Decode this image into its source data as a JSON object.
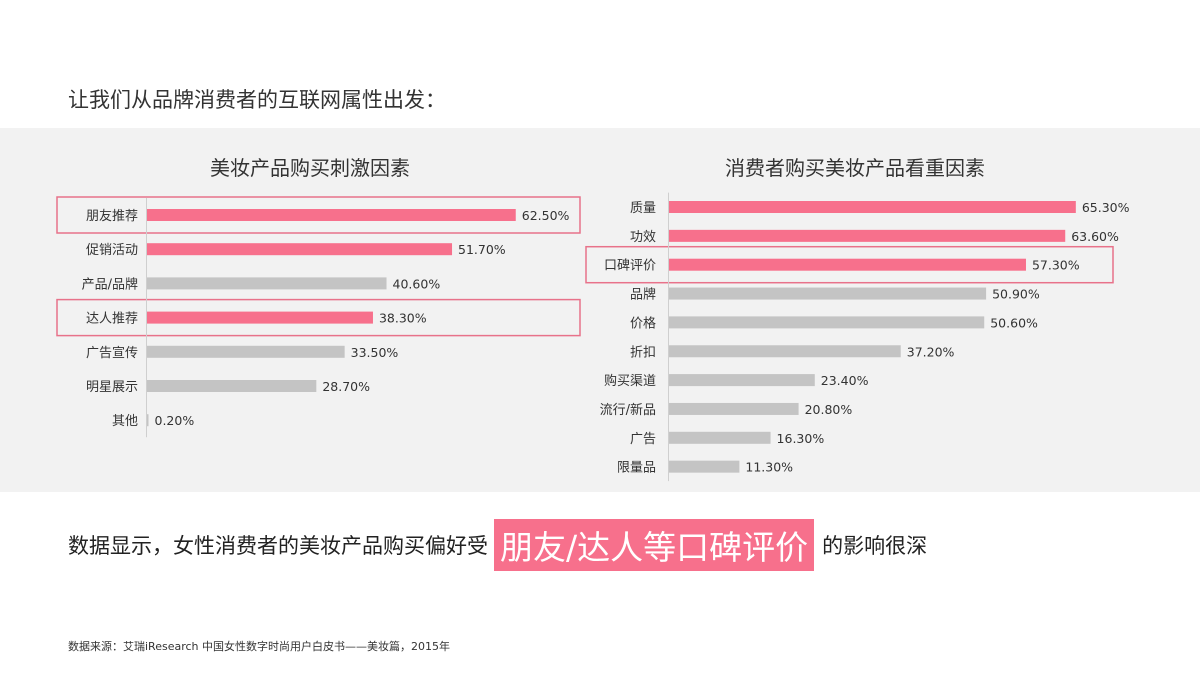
{
  "intro": "让我们从品牌消费者的互联网属性出发：",
  "conclusion": {
    "before": "数据显示，女性消费者的美妆产品购买偏好受",
    "highlight": "朋友/达人等口碑评价",
    "after": "的影响很深"
  },
  "source": "数据来源：艾瑞iResearch 中国女性数字时尚用户白皮书——美妆篇，2015年",
  "colors": {
    "highlight": "#f7708c",
    "gray": "#c4c4c4",
    "box": "#e8728a",
    "panel": "#f2f2f2"
  },
  "chart_data": [
    {
      "type": "bar",
      "orientation": "horizontal",
      "title": "美妆产品购买刺激因素",
      "categories": [
        "朋友推荐",
        "促销活动",
        "产品/品牌",
        "达人推荐",
        "广告宣传",
        "明星展示",
        "其他"
      ],
      "values": [
        62.5,
        51.7,
        40.6,
        38.3,
        33.5,
        28.7,
        0.2
      ],
      "labels": [
        "62.50%",
        "51.70%",
        "40.60%",
        "38.30%",
        "33.50%",
        "28.70%",
        "0.20%"
      ],
      "highlighted": [
        true,
        true,
        false,
        true,
        false,
        false,
        false
      ],
      "boxed": [
        0,
        3
      ]
    },
    {
      "type": "bar",
      "orientation": "horizontal",
      "title": "消费者购买美妆产品看重因素",
      "categories": [
        "质量",
        "功效",
        "口碑评价",
        "品牌",
        "价格",
        "折扣",
        "购买渠道",
        "流行/新品",
        "广告",
        "限量品"
      ],
      "values": [
        65.3,
        63.6,
        57.3,
        50.9,
        50.6,
        37.2,
        23.4,
        20.8,
        16.3,
        11.3
      ],
      "labels": [
        "65.30%",
        "63.60%",
        "57.30%",
        "50.90%",
        "50.60%",
        "37.20%",
        "23.40%",
        "20.80%",
        "16.30%",
        "11.30%"
      ],
      "highlighted": [
        true,
        true,
        true,
        false,
        false,
        false,
        false,
        false,
        false,
        false
      ],
      "boxed": [
        2
      ]
    }
  ]
}
